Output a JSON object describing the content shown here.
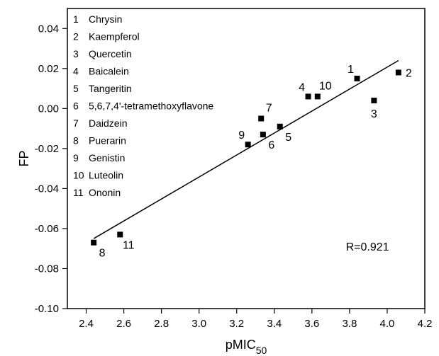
{
  "chart_data": {
    "type": "scatter",
    "xlabel": "pMIC",
    "xlabel_subscript": "50",
    "ylabel": "FP",
    "xlim": [
      2.3,
      4.2
    ],
    "ylim": [
      -0.1,
      0.05
    ],
    "xticks": [
      {
        "value": 2.4,
        "label": "2.4"
      },
      {
        "value": 2.6,
        "label": "2.6"
      },
      {
        "value": 2.8,
        "label": "2.8"
      },
      {
        "value": 3.0,
        "label": "3.0"
      },
      {
        "value": 3.2,
        "label": "3.2"
      },
      {
        "value": 3.4,
        "label": "3.4"
      },
      {
        "value": 3.6,
        "label": "3.6"
      },
      {
        "value": 3.8,
        "label": "3.8"
      },
      {
        "value": 4.0,
        "label": "4.0"
      },
      {
        "value": 4.2,
        "label": "4.2"
      }
    ],
    "yticks": [
      {
        "value": -0.1,
        "label": "-0.10"
      },
      {
        "value": -0.08,
        "label": "-0.08"
      },
      {
        "value": -0.06,
        "label": "-0.06"
      },
      {
        "value": -0.04,
        "label": "-0.04"
      },
      {
        "value": -0.02,
        "label": "-0.02"
      },
      {
        "value": 0.0,
        "label": "0.00"
      },
      {
        "value": 0.02,
        "label": "0.02"
      },
      {
        "value": 0.04,
        "label": "0.04"
      }
    ],
    "legend_placement": "top-left",
    "legend": [
      {
        "num": "1",
        "name": "Chrysin"
      },
      {
        "num": "2",
        "name": "Kaempferol"
      },
      {
        "num": "3",
        "name": "Quercetin"
      },
      {
        "num": "4",
        "name": "Baicalein"
      },
      {
        "num": "5",
        "name": "Tangeritin"
      },
      {
        "num": "6",
        "name": "5,6,7,4'-tetramethoxyflavone"
      },
      {
        "num": "7",
        "name": "Daidzein"
      },
      {
        "num": "8",
        "name": "Puerarin"
      },
      {
        "num": "9",
        "name": "Genistin"
      },
      {
        "num": "10",
        "name": "Luteolin"
      },
      {
        "num": "11",
        "name": "Ononin"
      }
    ],
    "points": [
      {
        "label": "1",
        "x": 3.84,
        "y": 0.015,
        "label_pos": "top-left"
      },
      {
        "label": "2",
        "x": 4.06,
        "y": 0.018,
        "label_pos": "right"
      },
      {
        "label": "3",
        "x": 3.93,
        "y": 0.004,
        "label_pos": "below"
      },
      {
        "label": "4",
        "x": 3.58,
        "y": 0.006,
        "label_pos": "top-left"
      },
      {
        "label": "5",
        "x": 3.43,
        "y": -0.009,
        "label_pos": "bottom-right"
      },
      {
        "label": "6",
        "x": 3.34,
        "y": -0.013,
        "label_pos": "bottom-right"
      },
      {
        "label": "7",
        "x": 3.33,
        "y": -0.005,
        "label_pos": "top-right"
      },
      {
        "label": "8",
        "x": 2.44,
        "y": -0.067,
        "label_pos": "bottom-right"
      },
      {
        "label": "9",
        "x": 3.26,
        "y": -0.018,
        "label_pos": "top-left"
      },
      {
        "label": "10",
        "x": 3.63,
        "y": 0.006,
        "label_pos": "top-right"
      },
      {
        "label": "11",
        "x": 2.58,
        "y": -0.063,
        "label_pos": "bottom-right"
      }
    ],
    "fit_line": {
      "x1": 2.44,
      "y1": -0.065,
      "x2": 4.06,
      "y2": 0.024
    },
    "annotation": "R=0.921",
    "annotation_x": 3.78,
    "annotation_y": -0.071
  }
}
